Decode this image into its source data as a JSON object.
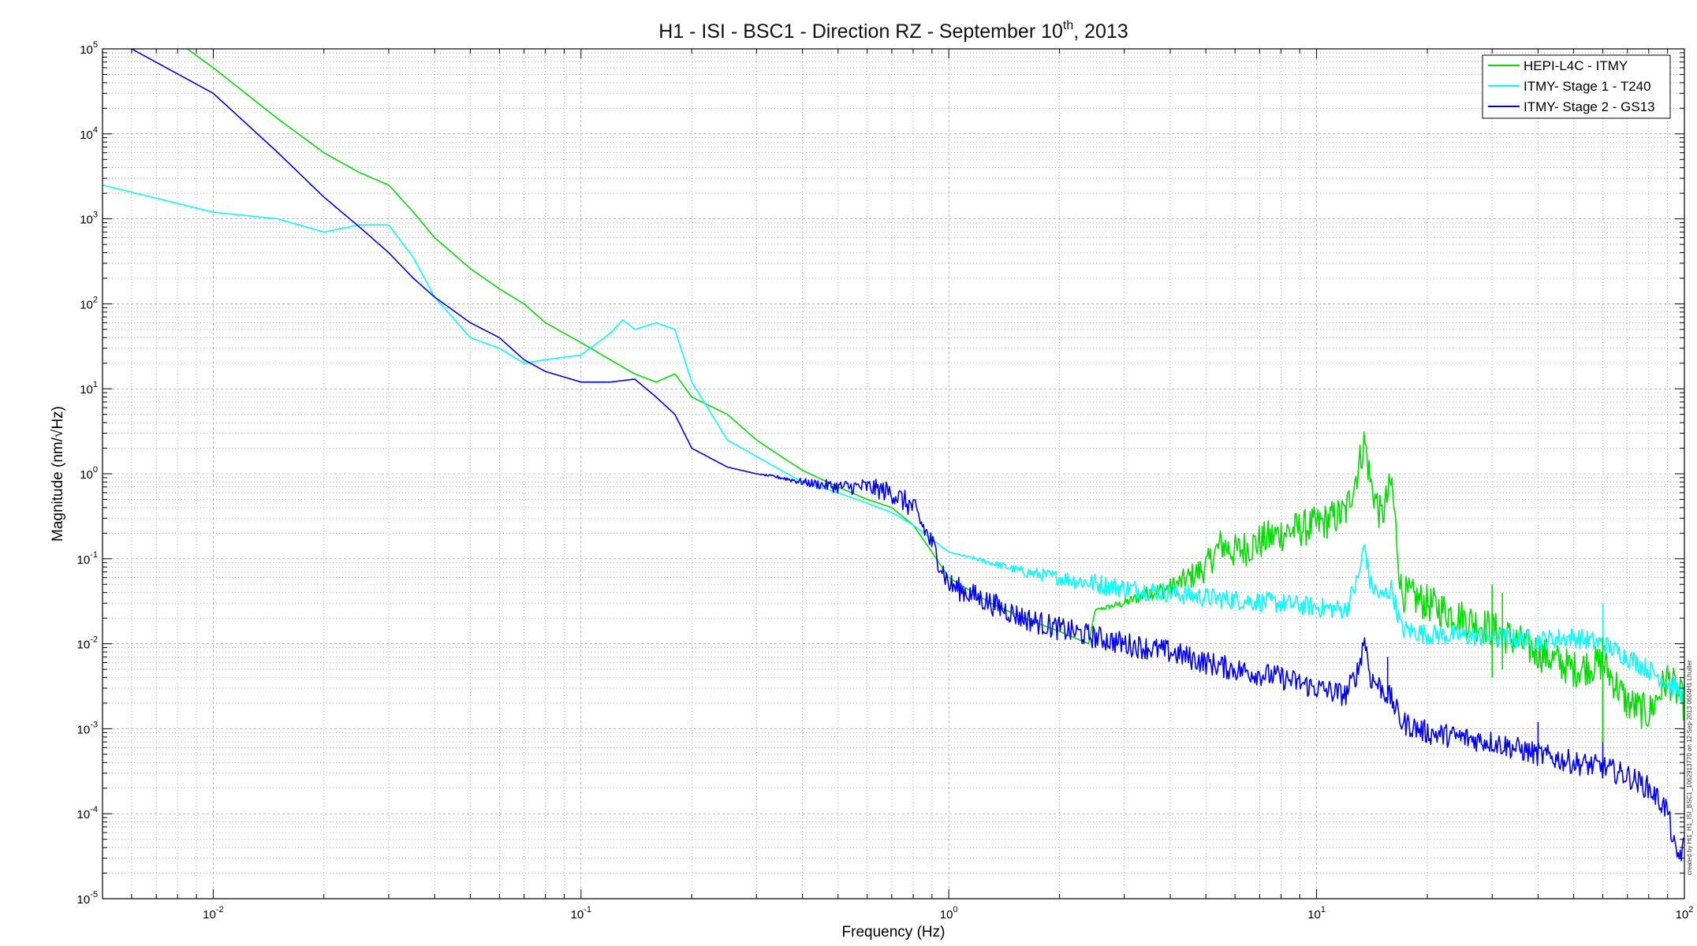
{
  "colors": {
    "hepi": "#00e000",
    "stage1": "#00ffff",
    "stage2": "#0000ff",
    "grid": "#888888",
    "axis": "#000000"
  },
  "chart_data": {
    "type": "line",
    "title": {
      "main": "H1 - ISI - BSC1 - Direction RZ - September 10",
      "sup": "th",
      "suffix": ", 2013"
    },
    "xlabel": "Frequency (Hz)",
    "ylabel": "Magnitude (nm/√Hz)",
    "xscale": "log",
    "yscale": "log",
    "xlim": [
      0.005,
      100
    ],
    "ylim": [
      1e-05,
      100000
    ],
    "grid": true,
    "legend_position": "top-right",
    "x_ticks": [
      {
        "value": 0.01,
        "base": "10",
        "exp": "-2"
      },
      {
        "value": 0.1,
        "base": "10",
        "exp": "-1"
      },
      {
        "value": 1,
        "base": "10",
        "exp": "0"
      },
      {
        "value": 10,
        "base": "10",
        "exp": "1"
      },
      {
        "value": 100,
        "base": "10",
        "exp": "2"
      }
    ],
    "y_ticks": [
      {
        "value": 1e-05,
        "base": "10",
        "exp": "-5"
      },
      {
        "value": 0.0001,
        "base": "10",
        "exp": "-4"
      },
      {
        "value": 0.001,
        "base": "10",
        "exp": "-3"
      },
      {
        "value": 0.01,
        "base": "10",
        "exp": "-2"
      },
      {
        "value": 0.1,
        "base": "10",
        "exp": "-1"
      },
      {
        "value": 1,
        "base": "10",
        "exp": "0"
      },
      {
        "value": 10,
        "base": "10",
        "exp": "1"
      },
      {
        "value": 100,
        "base": "10",
        "exp": "2"
      },
      {
        "value": 1000,
        "base": "10",
        "exp": "3"
      },
      {
        "value": 10000,
        "base": "10",
        "exp": "4"
      },
      {
        "value": 100000,
        "base": "10",
        "exp": "5"
      }
    ],
    "credit": "created by Hi1_H1_ISI_BSC1_1062913770 on 12-Sep-2013 0604H1 Lhuiller",
    "series": [
      {
        "name": "HEPI-L4C - ITMY",
        "color": "#00e000",
        "x": [
          0.0085,
          0.01,
          0.015,
          0.02,
          0.025,
          0.03,
          0.035,
          0.04,
          0.05,
          0.06,
          0.07,
          0.08,
          0.1,
          0.12,
          0.14,
          0.16,
          0.18,
          0.2,
          0.25,
          0.3,
          0.35,
          0.4,
          0.5,
          0.6,
          0.7,
          0.8,
          0.9,
          1.0,
          1.3,
          1.6,
          2.0,
          2.4,
          2.5,
          3.0,
          3.5,
          4.0,
          4.5,
          5.0,
          5.5,
          6.0,
          8.0,
          10.0,
          12.0,
          13.0,
          13.5,
          14.0,
          15.0,
          16.0,
          17.0,
          20.0,
          25.0,
          30.0,
          40.0,
          50.0,
          60.0,
          70.0,
          80.0,
          90.0,
          100.0
        ],
        "y": [
          100000,
          60000,
          15000,
          6000,
          3500,
          2500,
          1200,
          600,
          260,
          150,
          100,
          60,
          35,
          22,
          15,
          12,
          15,
          8,
          5,
          2.5,
          1.6,
          1.1,
          0.7,
          0.5,
          0.4,
          0.25,
          0.12,
          0.06,
          0.03,
          0.02,
          0.014,
          0.01,
          0.025,
          0.03,
          0.04,
          0.045,
          0.06,
          0.08,
          0.15,
          0.12,
          0.2,
          0.25,
          0.35,
          1.2,
          2.5,
          0.8,
          0.3,
          0.8,
          0.04,
          0.03,
          0.02,
          0.015,
          0.008,
          0.005,
          0.006,
          0.002,
          0.0015,
          0.004,
          0.002
        ],
        "noise": 0.22,
        "noise_from": 2.4
      },
      {
        "name": "ITMY- Stage 1 - T240",
        "color": "#00ffff",
        "x": [
          0.005,
          0.01,
          0.015,
          0.02,
          0.025,
          0.03,
          0.035,
          0.04,
          0.05,
          0.06,
          0.07,
          0.08,
          0.1,
          0.12,
          0.13,
          0.14,
          0.16,
          0.18,
          0.2,
          0.25,
          0.3,
          0.35,
          0.4,
          0.5,
          0.6,
          0.7,
          0.8,
          0.9,
          1.0,
          1.3,
          1.6,
          2.0,
          3.0,
          4.0,
          5.0,
          6.0,
          8.0,
          10.0,
          12.0,
          13.0,
          13.5,
          14.0,
          15.0,
          16.0,
          17.0,
          20.0,
          30.0,
          40.0,
          50.0,
          60.0,
          70.0,
          80.0,
          90.0,
          100.0
        ],
        "y": [
          2500,
          1200,
          1000,
          700,
          850,
          850,
          350,
          120,
          40,
          30,
          20,
          22,
          25,
          45,
          65,
          50,
          60,
          50,
          12,
          2.5,
          1.6,
          1.1,
          0.8,
          0.6,
          0.45,
          0.35,
          0.25,
          0.17,
          0.12,
          0.09,
          0.07,
          0.06,
          0.045,
          0.04,
          0.035,
          0.033,
          0.03,
          0.027,
          0.025,
          0.06,
          0.15,
          0.05,
          0.035,
          0.045,
          0.015,
          0.013,
          0.012,
          0.011,
          0.012,
          0.01,
          0.007,
          0.005,
          0.0035,
          0.0025
        ],
        "noise": 0.12,
        "noise_from": 1.0
      },
      {
        "name": "ITMY- Stage 2 - GS13",
        "color": "#0000ff",
        "x": [
          0.006,
          0.01,
          0.015,
          0.02,
          0.025,
          0.03,
          0.035,
          0.04,
          0.05,
          0.06,
          0.07,
          0.08,
          0.1,
          0.12,
          0.14,
          0.16,
          0.18,
          0.2,
          0.25,
          0.3,
          0.35,
          0.4,
          0.5,
          0.6,
          0.7,
          0.8,
          0.9,
          1.0,
          1.3,
          1.6,
          2.0,
          3.0,
          4.0,
          5.0,
          6.0,
          8.0,
          10.0,
          12.0,
          13.0,
          13.5,
          14.0,
          15.0,
          16.0,
          17.0,
          20.0,
          30.0,
          40.0,
          50.0,
          60.0,
          70.0,
          80.0,
          90.0,
          95.0,
          100.0
        ],
        "y": [
          100000,
          30000,
          6000,
          1800,
          800,
          400,
          200,
          120,
          60,
          40,
          22,
          16,
          12,
          12,
          13,
          8,
          5,
          2,
          1.2,
          1.0,
          0.9,
          0.8,
          0.7,
          0.7,
          0.6,
          0.4,
          0.15,
          0.05,
          0.03,
          0.02,
          0.015,
          0.01,
          0.008,
          0.006,
          0.005,
          0.004,
          0.003,
          0.0025,
          0.005,
          0.012,
          0.004,
          0.003,
          0.0022,
          0.0012,
          0.0009,
          0.0007,
          0.0005,
          0.0004,
          0.00035,
          0.00028,
          0.0002,
          0.00011,
          3e-05,
          4e-05
        ],
        "noise": 0.14,
        "noise_from": 0.3
      }
    ],
    "spikes": [
      {
        "series": 2,
        "x": 60.0,
        "y_from": 0.0003,
        "y_to": 0.003
      },
      {
        "series": 2,
        "x": 40.0,
        "y_from": 0.0005,
        "y_to": 0.0012
      },
      {
        "series": 2,
        "x": 15.6,
        "y_from": 0.0025,
        "y_to": 0.007
      },
      {
        "series": 1,
        "x": 60.0,
        "y_from": 0.003,
        "y_to": 0.03
      },
      {
        "series": 0,
        "x": 60.0,
        "y_from": 0.0007,
        "y_to": 0.012
      },
      {
        "series": 0,
        "x": 30.0,
        "y_from": 0.004,
        "y_to": 0.05
      },
      {
        "series": 0,
        "x": 32.0,
        "y_from": 0.005,
        "y_to": 0.04
      }
    ]
  }
}
